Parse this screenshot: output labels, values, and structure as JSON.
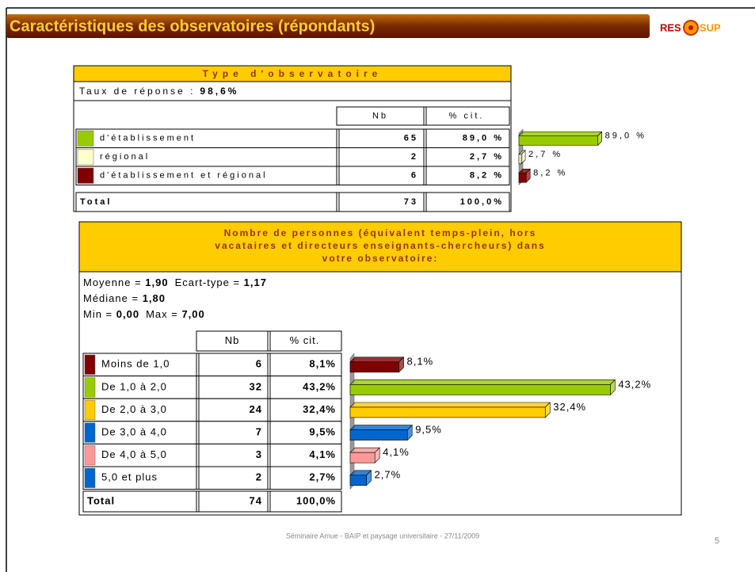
{
  "slide": {
    "title": "Caractéristiques des observatoires (répondants)",
    "logo": [
      "RES",
      "SUP"
    ],
    "footer": "Séminaire Amue - BAIP et paysage universitaire - 27/11/2009",
    "page_number": "5"
  },
  "type_table": {
    "title": "Type d'observatoire",
    "response_label": "Taux de réponse :",
    "response_value": "98,6%",
    "columns": [
      "Nb",
      "% cit."
    ],
    "rows": [
      {
        "label": "d'établissement",
        "color": "#99cc00",
        "nb": "65",
        "pct": "89,0 %"
      },
      {
        "label": "régional",
        "color": "#ffffcc",
        "nb": "2",
        "pct": "2,7 %"
      },
      {
        "label": "d'établissement et régional",
        "color": "#800000",
        "nb": "6",
        "pct": "8,2 %"
      }
    ],
    "total": {
      "label": "Total",
      "nb": "73",
      "pct": "100,0%"
    },
    "bars": {
      "values": [
        89.0,
        2.7,
        8.2
      ],
      "value_labels": [
        "89,0 %",
        "2,7 %",
        "8,2 %"
      ]
    }
  },
  "staff_table": {
    "title_lines": [
      "Nombre de personnes (équivalent temps-plein, hors",
      "vacataires et directeurs enseignants-chercheurs) dans",
      "votre observatoire:"
    ],
    "stats": [
      [
        {
          "label": "Moyenne = ",
          "value": "1,90"
        },
        {
          "label": "Ecart-type = ",
          "value": "1,17"
        }
      ],
      [
        {
          "label": "Médiane = ",
          "value": "1,80"
        }
      ],
      [
        {
          "label": "Min = ",
          "value": "0,00"
        },
        {
          "label": "Max = ",
          "value": "7,00"
        }
      ]
    ],
    "columns": [
      "Nb",
      "% cit."
    ],
    "rows": [
      {
        "label": "Moins de 1,0",
        "color": "#800000",
        "nb": "6",
        "pct": "8,1%"
      },
      {
        "label": "De 1,0 à 2,0",
        "color": "#99cc00",
        "nb": "32",
        "pct": "43,2%"
      },
      {
        "label": "De 2,0 à 3,0",
        "color": "#ffcc00",
        "nb": "24",
        "pct": "32,4%"
      },
      {
        "label": "De 3,0 à 4,0",
        "color": "#0066cc",
        "nb": "7",
        "pct": "9,5%"
      },
      {
        "label": "De 4,0 à 5,0",
        "color": "#ff9999",
        "nb": "3",
        "pct": "4,1%"
      },
      {
        "label": "5,0 et plus",
        "color": "#0066cc",
        "nb": "2",
        "pct": "2,7%"
      }
    ],
    "total": {
      "label": "Total",
      "nb": "74",
      "pct": "100,0%"
    },
    "bars": {
      "values": [
        8.1,
        43.2,
        32.4,
        9.5,
        4.1,
        2.7
      ],
      "value_labels": [
        "8,1%",
        "43,2%",
        "32,4%",
        "9,5%",
        "4,1%",
        "2,7%"
      ]
    }
  }
}
